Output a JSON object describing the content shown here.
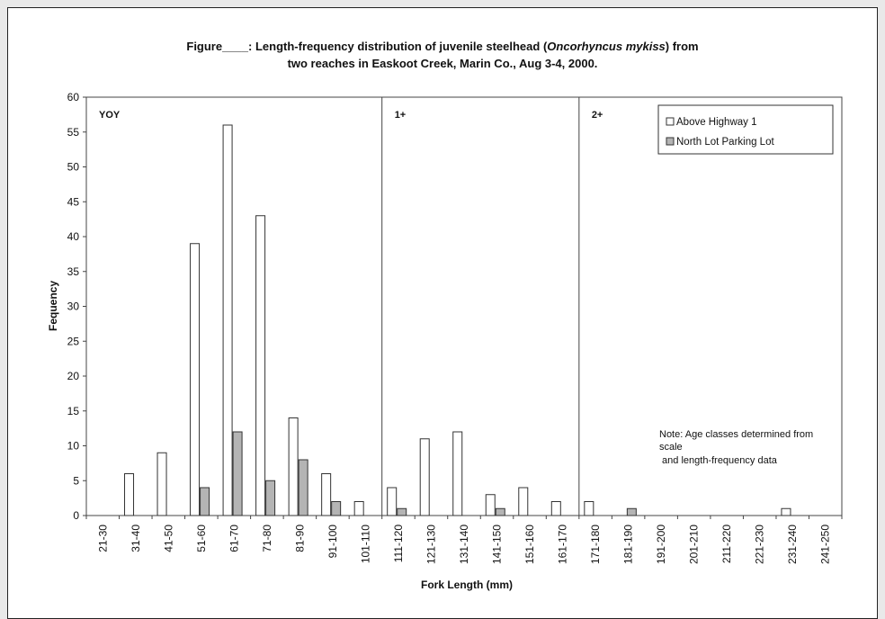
{
  "title": {
    "line1_prefix": "Figure____:  Length-frequency distribution of juvenile steelhead (",
    "line1_italic": "Oncorhyncus mykiss",
    "line1_suffix": ") from",
    "line2": "two reaches in Easkoot Creek, Marin Co., Aug 3-4, 2000."
  },
  "chart_data": {
    "type": "bar",
    "title": "Length-frequency distribution of juvenile steelhead (Oncorhyncus mykiss) from two reaches in Easkoot Creek, Marin Co., Aug 3-4, 2000.",
    "xlabel": "Fork Length (mm)",
    "ylabel": "Fequency",
    "ylim": [
      0,
      60
    ],
    "yticks": [
      0,
      5,
      10,
      15,
      20,
      25,
      30,
      35,
      40,
      45,
      50,
      55,
      60
    ],
    "grid": false,
    "legend_position": "top-right",
    "categories": [
      "21-30",
      "31-40",
      "41-50",
      "51-60",
      "61-70",
      "71-80",
      "81-90",
      "91-100",
      "101-110",
      "111-120",
      "121-130",
      "131-140",
      "141-150",
      "151-160",
      "161-170",
      "171-180",
      "181-190",
      "191-200",
      "201-210",
      "211-220",
      "221-230",
      "231-240",
      "241-250"
    ],
    "series": [
      {
        "name": "Above Highway 1",
        "color": "#ffffff",
        "values": [
          0,
          6,
          9,
          39,
          56,
          43,
          14,
          6,
          2,
          4,
          11,
          12,
          3,
          4,
          2,
          2,
          0,
          0,
          0,
          0,
          0,
          1,
          0
        ]
      },
      {
        "name": "North Lot Parking Lot",
        "color": "#b4b4b4",
        "values": [
          0,
          0,
          0,
          4,
          12,
          5,
          8,
          2,
          0,
          1,
          0,
          0,
          1,
          0,
          0,
          0,
          1,
          0,
          0,
          0,
          0,
          0,
          0
        ]
      }
    ],
    "age_classes": [
      {
        "label": "YOY",
        "start_index": 0
      },
      {
        "label": "1+",
        "start_index": 9
      },
      {
        "label": "2+",
        "start_index": 15
      }
    ],
    "note": [
      "Note: Age classes determined from",
      "scale",
      " and length-frequency data"
    ]
  }
}
